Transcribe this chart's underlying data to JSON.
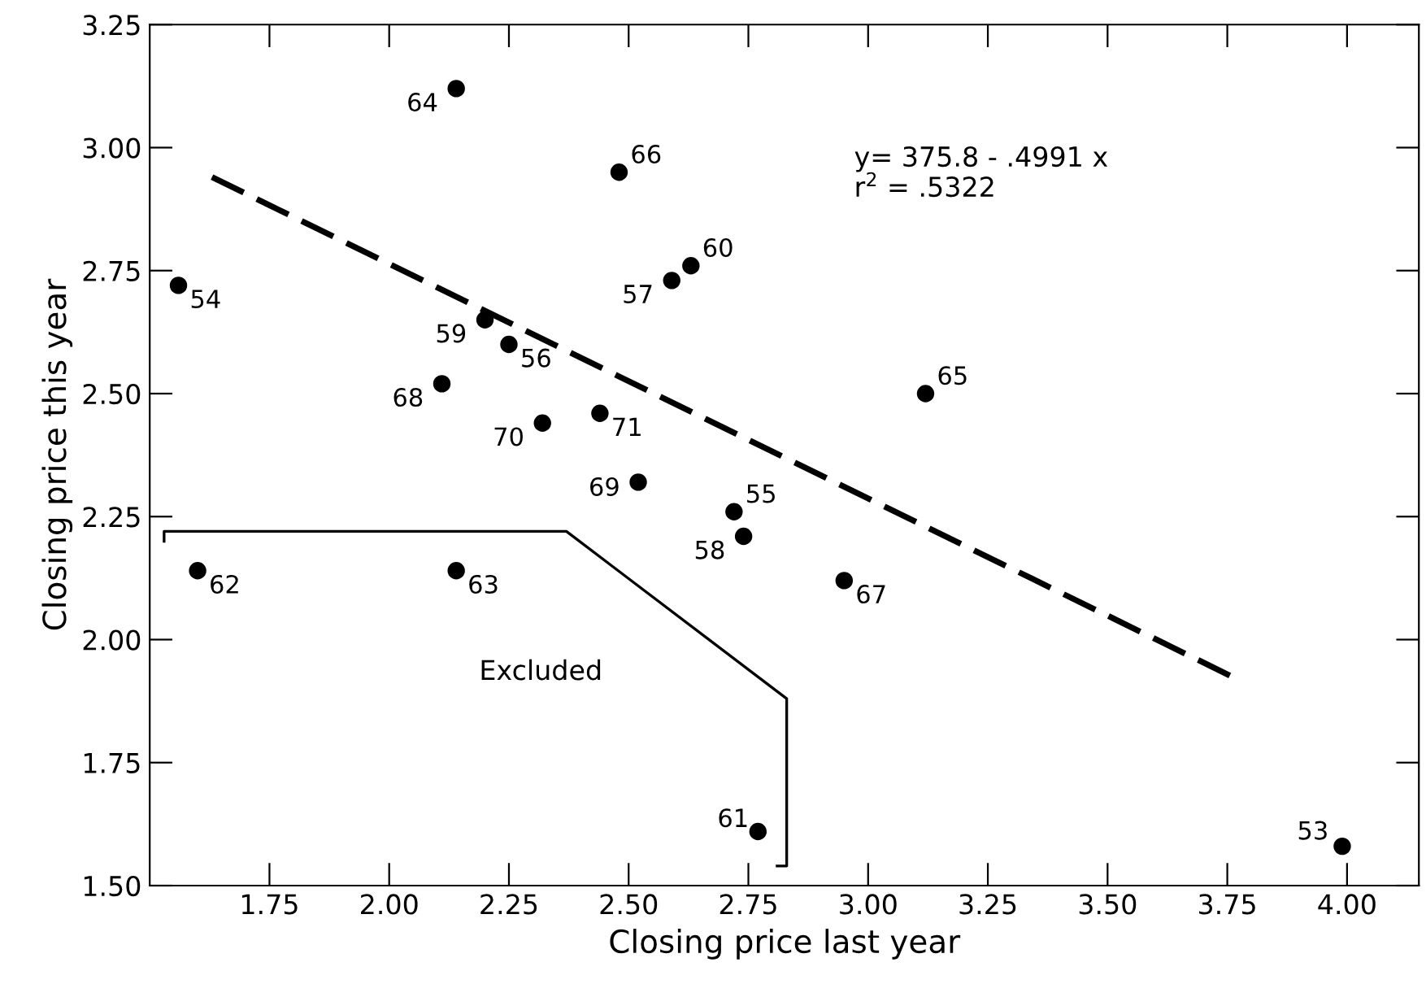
{
  "chart_data": {
    "type": "scatter",
    "xlabel": "Closing price last year",
    "ylabel": "Closing price this year",
    "xlim": [
      1.5,
      4.15
    ],
    "ylim": [
      1.5,
      3.25
    ],
    "xticks": [
      {
        "value": 1.75,
        "label": "1.75"
      },
      {
        "value": 2.0,
        "label": "2.00"
      },
      {
        "value": 2.25,
        "label": "2.25"
      },
      {
        "value": 2.5,
        "label": "2.50"
      },
      {
        "value": 2.75,
        "label": "2.75"
      },
      {
        "value": 3.0,
        "label": "3.00"
      },
      {
        "value": 3.25,
        "label": "3.25"
      },
      {
        "value": 3.5,
        "label": "3.50"
      },
      {
        "value": 3.75,
        "label": "3.75"
      },
      {
        "value": 4.0,
        "label": "4.00"
      }
    ],
    "yticks": [
      {
        "value": 1.5,
        "label": "1.50"
      },
      {
        "value": 1.75,
        "label": "1.75"
      },
      {
        "value": 2.0,
        "label": "2.00"
      },
      {
        "value": 2.25,
        "label": "2.25"
      },
      {
        "value": 2.5,
        "label": "2.50"
      },
      {
        "value": 2.75,
        "label": "2.75"
      },
      {
        "value": 3.0,
        "label": "3.00"
      },
      {
        "value": 3.25,
        "label": "3.25"
      }
    ],
    "grid": false,
    "legend": false,
    "series": [
      {
        "color": "#000000",
        "marker": "circle",
        "x": [
          1.56,
          2.14,
          2.48,
          2.59,
          2.63,
          2.2,
          2.25,
          2.11,
          2.32,
          2.44,
          2.52,
          2.72,
          2.74,
          3.12,
          2.95,
          1.6,
          2.14,
          2.77,
          3.99
        ],
        "values": [
          2.72,
          3.12,
          2.95,
          2.73,
          2.76,
          2.65,
          2.6,
          2.52,
          2.44,
          2.46,
          2.32,
          2.26,
          2.21,
          2.5,
          2.12,
          2.14,
          2.14,
          1.61,
          1.58
        ]
      },
      {
        "type": "line",
        "color": "#000000",
        "line_style": "dashed",
        "marker": "none",
        "x": [
          1.63,
          3.77
        ],
        "values": [
          2.94,
          1.92
        ]
      },
      {
        "type": "line",
        "name": "Excluded",
        "color": "#000000",
        "line_style": "solid",
        "marker": "none",
        "x": [
          1.53,
          1.53,
          2.37,
          2.83,
          2.83,
          2.81
        ],
        "values": [
          2.2,
          2.22,
          2.22,
          1.88,
          1.54,
          1.54
        ]
      }
    ],
    "annotations": [
      "y= 375.8 - .4991 x\nr$^{2}$ = .5322",
      {
        "text": "54",
        "x": 1.56,
        "y": 2.72
      },
      {
        "text": "64",
        "x": 2.14,
        "y": 3.12
      },
      {
        "text": "66",
        "x": 2.48,
        "y": 2.95
      },
      {
        "text": "57",
        "x": 2.59,
        "y": 2.73
      },
      {
        "text": "60",
        "x": 2.63,
        "y": 2.76
      },
      {
        "text": "59",
        "x": 2.2,
        "y": 2.65
      },
      {
        "text": "56",
        "x": 2.25,
        "y": 2.6
      },
      {
        "text": "68",
        "x": 2.11,
        "y": 2.52
      },
      {
        "text": "70",
        "x": 2.32,
        "y": 2.44
      },
      {
        "text": "71",
        "x": 2.44,
        "y": 2.46
      },
      {
        "text": "69",
        "x": 2.52,
        "y": 2.32
      },
      {
        "text": "55",
        "x": 2.72,
        "y": 2.26
      },
      {
        "text": "58",
        "x": 2.74,
        "y": 2.21
      },
      {
        "text": "65",
        "x": 3.12,
        "y": 2.5
      },
      {
        "text": "67",
        "x": 2.95,
        "y": 2.12
      },
      {
        "text": "62",
        "x": 1.6,
        "y": 2.14
      },
      {
        "text": "63",
        "x": 2.14,
        "y": 2.14
      },
      {
        "text": "61",
        "x": 2.77,
        "y": 1.61
      },
      {
        "text": "53",
        "x": 3.99,
        "y": 1.58
      }
    ]
  }
}
